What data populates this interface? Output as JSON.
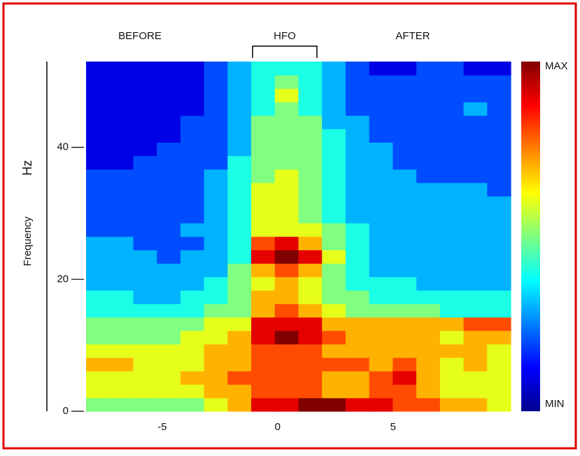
{
  "chart_data": {
    "type": "heatmap",
    "annotations": [
      "BEFORE",
      "HFO",
      "AFTER"
    ],
    "ylabel": "Frequency",
    "yunit": "Hz",
    "xlim": [
      -8.3,
      10.1
    ],
    "xticks": [
      -5,
      0,
      5
    ],
    "ylim": [
      0,
      53
    ],
    "yticks": [
      0,
      20,
      40
    ],
    "zlim": [
      0,
      10
    ],
    "colorbar": {
      "max_label": "MAX",
      "min_label": "MIN"
    },
    "z": [
      [
        5,
        5,
        5,
        5,
        5,
        6,
        7,
        9,
        9,
        10,
        10,
        9,
        9,
        8,
        8,
        7,
        7,
        6
      ],
      [
        6,
        6,
        6,
        6,
        6,
        7,
        7,
        8,
        8,
        8,
        7,
        7,
        8,
        8,
        7,
        6,
        6,
        6
      ],
      [
        6,
        6,
        6,
        6,
        7,
        7,
        8,
        8,
        8,
        8,
        7,
        7,
        8,
        9,
        7,
        6,
        6,
        6
      ],
      [
        7,
        7,
        6,
        6,
        6,
        7,
        7,
        8,
        8,
        8,
        8,
        8,
        7,
        8,
        7,
        6,
        7,
        6
      ],
      [
        6,
        6,
        6,
        6,
        6,
        7,
        7,
        8,
        8,
        8,
        7,
        7,
        7,
        7,
        7,
        7,
        7,
        6
      ],
      [
        5,
        5,
        5,
        5,
        6,
        6,
        7,
        9,
        10,
        9,
        8,
        7,
        7,
        7,
        7,
        6,
        7,
        7
      ],
      [
        5,
        5,
        5,
        5,
        5,
        6,
        6,
        9,
        9,
        9,
        7,
        7,
        7,
        7,
        7,
        7,
        8,
        8
      ],
      [
        4,
        4,
        4,
        4,
        4,
        5,
        5,
        7,
        8,
        7,
        6,
        5,
        5,
        5,
        5,
        4,
        4,
        4
      ],
      [
        4,
        4,
        3,
        3,
        4,
        4,
        5,
        7,
        7,
        6,
        5,
        5,
        4,
        4,
        4,
        4,
        4,
        4
      ],
      [
        3,
        3,
        3,
        3,
        3,
        4,
        5,
        6,
        7,
        6,
        5,
        4,
        4,
        4,
        3,
        3,
        3,
        3
      ],
      [
        3,
        3,
        3,
        3,
        3,
        3,
        5,
        7,
        8,
        7,
        5,
        4,
        3,
        3,
        3,
        3,
        3,
        3
      ],
      [
        3,
        3,
        3,
        2,
        3,
        3,
        4,
        9,
        10,
        9,
        6,
        4,
        3,
        3,
        3,
        3,
        3,
        3
      ],
      [
        3,
        3,
        2,
        2,
        2,
        3,
        4,
        8,
        9,
        7,
        5,
        4,
        3,
        3,
        3,
        3,
        3,
        3
      ],
      [
        2,
        2,
        2,
        2,
        3,
        3,
        4,
        6,
        6,
        6,
        5,
        4,
        3,
        3,
        3,
        3,
        3,
        3
      ],
      [
        2,
        2,
        2,
        2,
        2,
        3,
        4,
        6,
        6,
        5,
        4,
        3,
        3,
        3,
        3,
        3,
        3,
        3
      ],
      [
        2,
        2,
        2,
        2,
        2,
        3,
        4,
        6,
        6,
        5,
        4,
        3,
        3,
        3,
        3,
        3,
        3,
        3
      ],
      [
        2,
        2,
        2,
        2,
        2,
        3,
        4,
        6,
        6,
        5,
        4,
        3,
        3,
        3,
        3,
        3,
        3,
        2
      ],
      [
        2,
        2,
        2,
        2,
        2,
        3,
        4,
        5,
        6,
        5,
        4,
        3,
        3,
        3,
        2,
        2,
        2,
        2
      ],
      [
        1,
        1,
        2,
        2,
        2,
        2,
        4,
        5,
        5,
        5,
        4,
        3,
        3,
        2,
        2,
        2,
        2,
        2
      ],
      [
        1,
        1,
        1,
        2,
        2,
        2,
        3,
        5,
        5,
        5,
        4,
        3,
        3,
        2,
        2,
        2,
        2,
        2
      ],
      [
        1,
        1,
        1,
        1,
        2,
        2,
        3,
        5,
        5,
        5,
        4,
        3,
        2,
        2,
        2,
        2,
        2,
        2
      ],
      [
        1,
        1,
        1,
        1,
        2,
        2,
        3,
        5,
        5,
        5,
        3,
        3,
        2,
        2,
        2,
        2,
        2,
        2
      ],
      [
        1,
        1,
        1,
        1,
        1,
        2,
        3,
        4,
        5,
        4,
        3,
        2,
        2,
        2,
        2,
        2,
        3,
        2
      ],
      [
        1,
        1,
        1,
        1,
        1,
        2,
        3,
        4,
        6,
        4,
        3,
        2,
        2,
        2,
        2,
        2,
        2,
        2
      ],
      [
        1,
        1,
        1,
        1,
        1,
        2,
        3,
        4,
        5,
        4,
        3,
        2,
        2,
        2,
        2,
        2,
        2,
        2
      ],
      [
        1,
        1,
        1,
        1,
        1,
        2,
        3,
        4,
        4,
        4,
        3,
        2,
        1,
        1,
        2,
        2,
        1,
        1
      ]
    ]
  }
}
